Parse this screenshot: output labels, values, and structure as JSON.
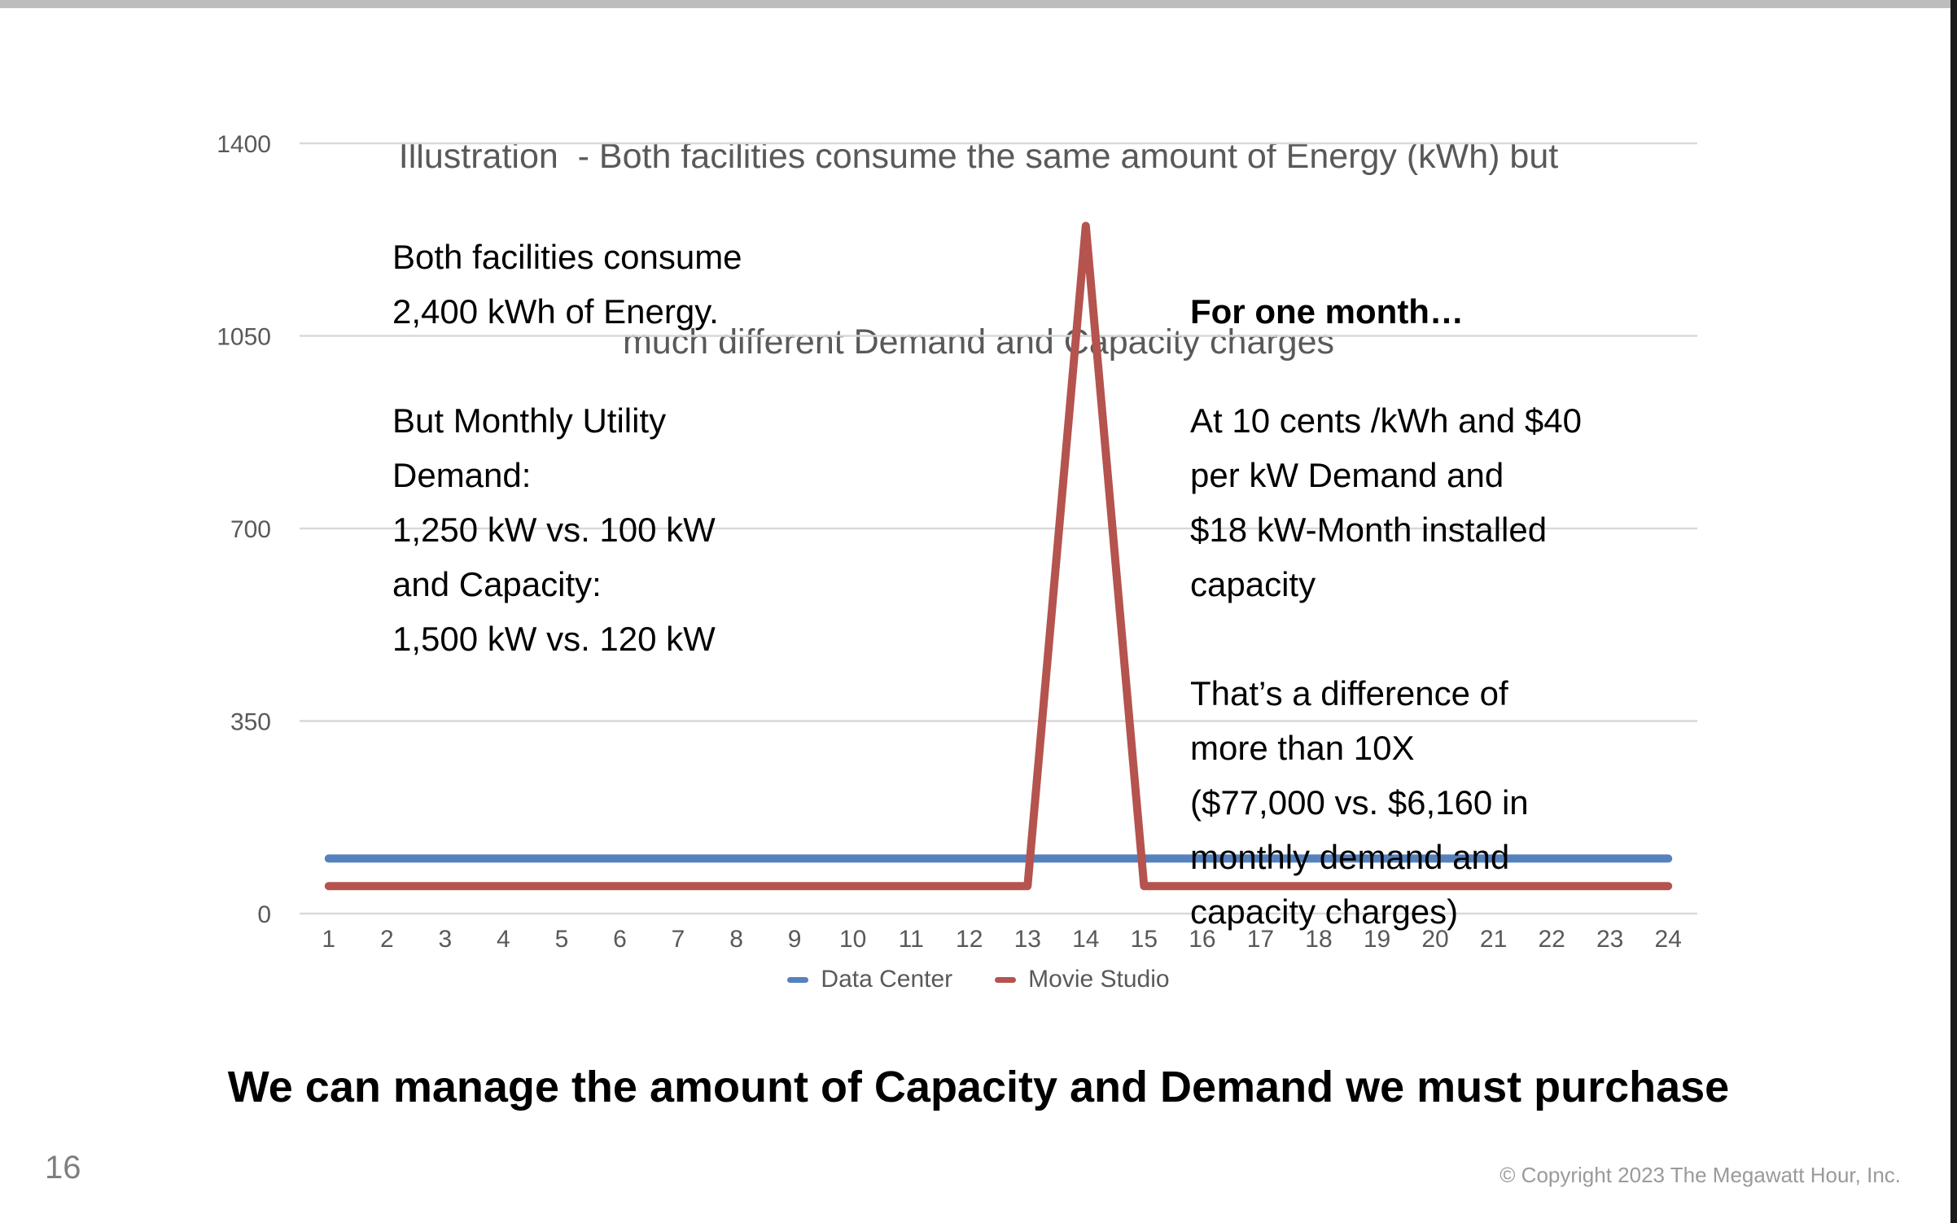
{
  "slide": {
    "page_number": "16",
    "footer_copyright": "© Copyright 2023 The Megawatt Hour, Inc.",
    "headline": "We can manage the amount of Capacity and Demand we must purchase"
  },
  "annotations": {
    "left": "Both facilities consume\n2,400 kWh of Energy.\n\nBut Monthly Utility\nDemand:\n1,250 kW vs. 100 kW\nand Capacity:\n1,500 kW vs. 120 kW",
    "right_heading": "For one month…",
    "right_body": "At 10 cents /kWh and $40\nper kW Demand and\n$18 kW-Month installed\ncapacity\n\nThat’s a difference of\nmore than 10X\n($77,000 vs. $6,160 in\nmonthly demand and\ncapacity charges)"
  },
  "colors": {
    "data_center_blue": "#5581BD",
    "movie_studio_red": "#B5534F",
    "gridline": "#D9D9D9",
    "axis_text": "#595959",
    "title_text": "#595959"
  },
  "chart_data": {
    "type": "line",
    "title_line1": "Illustration  - Both facilities consume the same amount of Energy (kWh) but",
    "title_line2": "much different Demand and Capacity charges",
    "xlabel": "",
    "ylabel": "",
    "x": [
      1,
      2,
      3,
      4,
      5,
      6,
      7,
      8,
      9,
      10,
      11,
      12,
      13,
      14,
      15,
      16,
      17,
      18,
      19,
      20,
      21,
      22,
      23,
      24
    ],
    "yticks": [
      0,
      350,
      700,
      1050,
      1400
    ],
    "ylim": [
      0,
      1400
    ],
    "grid": true,
    "legend_position": "bottom",
    "series": [
      {
        "name": "Data Center",
        "color": "#5581BD",
        "values": [
          100,
          100,
          100,
          100,
          100,
          100,
          100,
          100,
          100,
          100,
          100,
          100,
          100,
          100,
          100,
          100,
          100,
          100,
          100,
          100,
          100,
          100,
          100,
          100
        ]
      },
      {
        "name": "Movie Studio",
        "color": "#B5534F",
        "values": [
          50,
          50,
          50,
          50,
          50,
          50,
          50,
          50,
          50,
          50,
          50,
          50,
          50,
          1250,
          50,
          50,
          50,
          50,
          50,
          50,
          50,
          50,
          50,
          50
        ]
      }
    ]
  }
}
